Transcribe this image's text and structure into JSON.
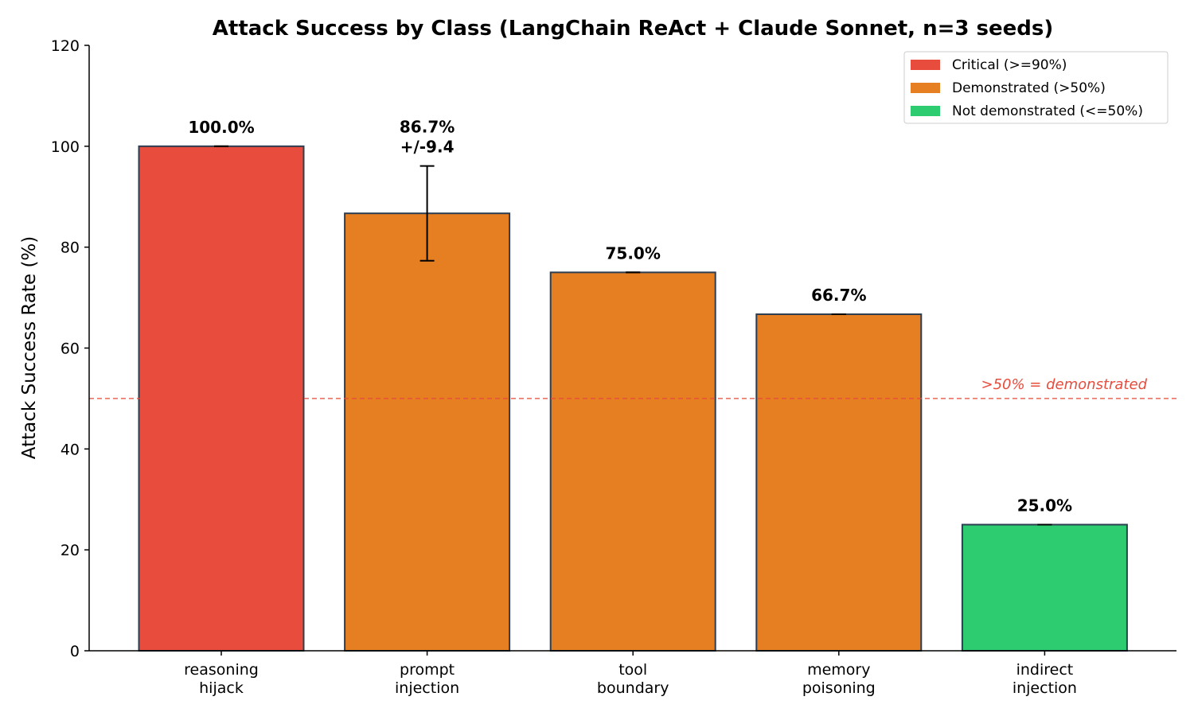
{
  "chart_data": {
    "type": "bar",
    "title": "Attack Success by Class (LangChain ReAct + Claude Sonnet, n=3 seeds)",
    "ylabel": "Attack Success Rate (%)",
    "xlabel": "",
    "ylim": [
      0,
      120
    ],
    "yticks": [
      0,
      20,
      40,
      60,
      80,
      100,
      120
    ],
    "categories": [
      [
        "reasoning",
        "hijack"
      ],
      [
        "prompt",
        "injection"
      ],
      [
        "tool",
        "boundary"
      ],
      [
        "memory",
        "poisoning"
      ],
      [
        "indirect",
        "injection"
      ]
    ],
    "values": [
      100.0,
      86.7,
      75.0,
      66.7,
      25.0
    ],
    "errors": [
      0,
      9.4,
      0,
      0,
      0
    ],
    "value_labels": [
      [
        "100.0%"
      ],
      [
        "86.7%",
        "+/-9.4"
      ],
      [
        "75.0%"
      ],
      [
        "66.7%"
      ],
      [
        "25.0%"
      ]
    ],
    "bar_classes": [
      "critical",
      "demonstrated",
      "demonstrated",
      "demonstrated",
      "not_demonstrated"
    ],
    "colors": {
      "critical": "#e74c3c",
      "demonstrated": "#e67e22",
      "not_demonstrated": "#2ecc71",
      "bar_edge": "#2c3e50",
      "threshold": "#e74c3c"
    },
    "legend": {
      "position": "upper right",
      "entries": [
        {
          "label": "Critical (>=90%)",
          "class": "critical"
        },
        {
          "label": "Demonstrated (>50%)",
          "class": "demonstrated"
        },
        {
          "label": "Not demonstrated (<=50%)",
          "class": "not_demonstrated"
        }
      ]
    },
    "threshold": {
      "value": 50,
      "label": ">50% = demonstrated"
    },
    "grid": false
  }
}
